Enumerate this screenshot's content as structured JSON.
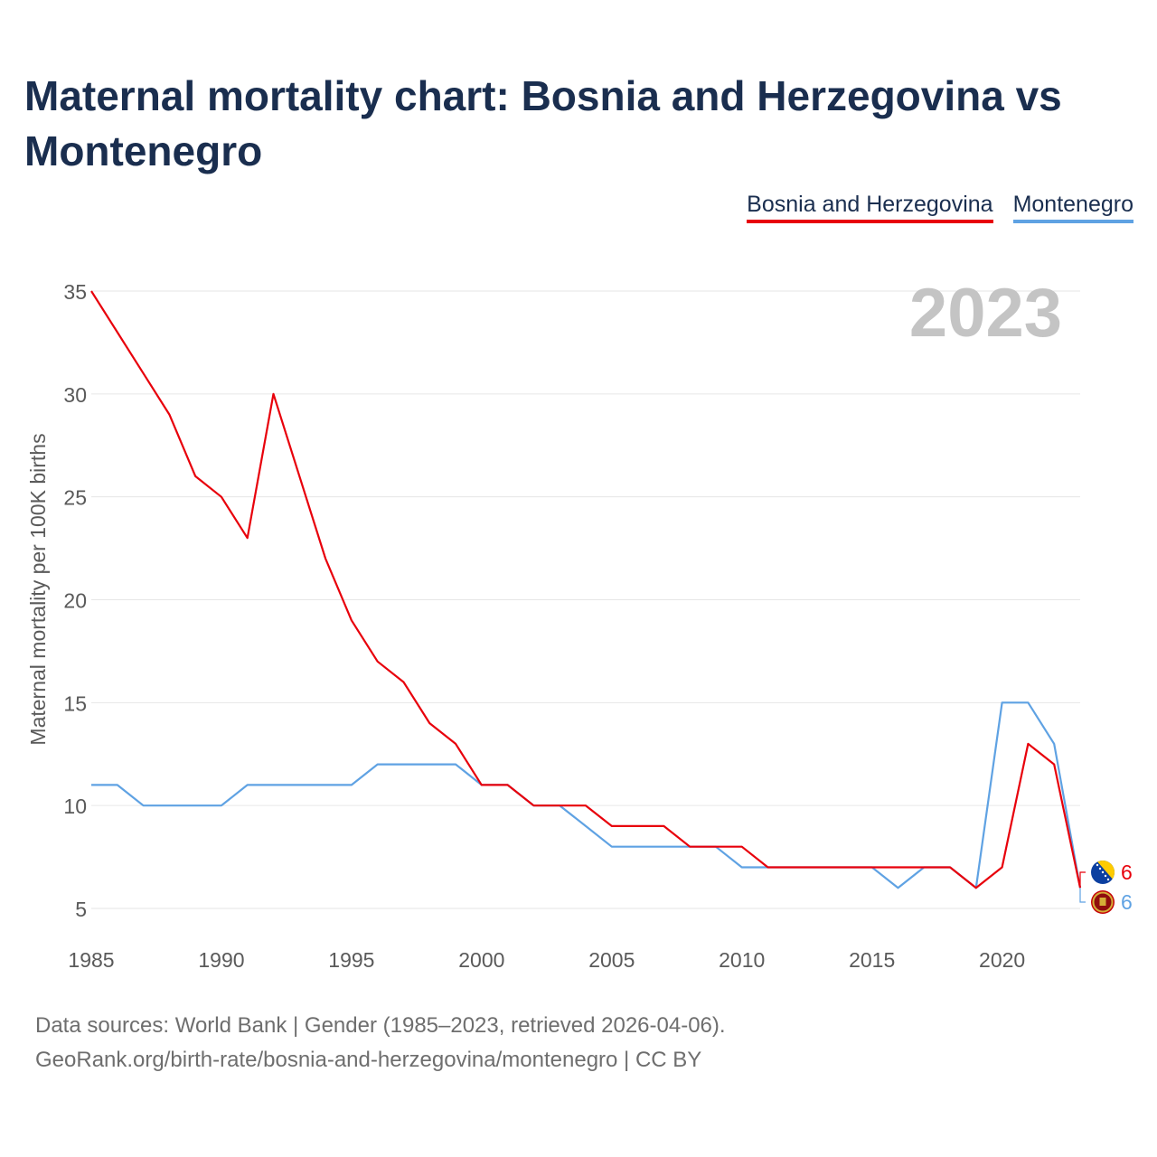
{
  "title": "Maternal mortality chart: Bosnia and Herzegovina vs Montenegro",
  "year_label": "2023",
  "legend": [
    {
      "name": "Bosnia and Herzegovina",
      "color": "#e8000b"
    },
    {
      "name": "Montenegro",
      "color": "#5fa2e3"
    }
  ],
  "footer": {
    "line1": "Data sources: World Bank | Gender (1985–2023, retrieved 2026-04-06).",
    "line2": "GeoRank.org/birth-rate/bosnia-and-herzegovina/montenegro | CC BY"
  },
  "chart_data": {
    "type": "line",
    "ylabel": "Maternal mortality per 100K births",
    "xlabel": "",
    "xlim": [
      1985,
      2023
    ],
    "ylim": [
      5,
      35
    ],
    "x_ticks": [
      1985,
      1990,
      1995,
      2000,
      2005,
      2010,
      2015,
      2020
    ],
    "y_ticks": [
      5,
      10,
      15,
      20,
      25,
      30,
      35
    ],
    "grid": true,
    "x": [
      1985,
      1986,
      1987,
      1988,
      1989,
      1990,
      1991,
      1992,
      1993,
      1994,
      1995,
      1996,
      1997,
      1998,
      1999,
      2000,
      2001,
      2002,
      2003,
      2004,
      2005,
      2006,
      2007,
      2008,
      2009,
      2010,
      2011,
      2012,
      2013,
      2014,
      2015,
      2016,
      2017,
      2018,
      2019,
      2020,
      2021,
      2022,
      2023
    ],
    "series": [
      {
        "name": "Bosnia and Herzegovina",
        "color": "#e8000b",
        "end_label": "6",
        "values": [
          35,
          33,
          31,
          29,
          26,
          25,
          23,
          30,
          26,
          22,
          19,
          17,
          16,
          14,
          13,
          11,
          11,
          10,
          10,
          10,
          9,
          9,
          9,
          8,
          8,
          8,
          7,
          7,
          7,
          7,
          7,
          7,
          7,
          7,
          6,
          7,
          13,
          12,
          6
        ]
      },
      {
        "name": "Montenegro",
        "color": "#5fa2e3",
        "end_label": "6",
        "values": [
          11,
          11,
          10,
          10,
          10,
          10,
          11,
          11,
          11,
          11,
          11,
          12,
          12,
          12,
          12,
          11,
          11,
          10,
          10,
          9,
          8,
          8,
          8,
          8,
          8,
          7,
          7,
          7,
          7,
          7,
          7,
          6,
          7,
          7,
          6,
          15,
          15,
          13,
          6
        ]
      }
    ]
  }
}
